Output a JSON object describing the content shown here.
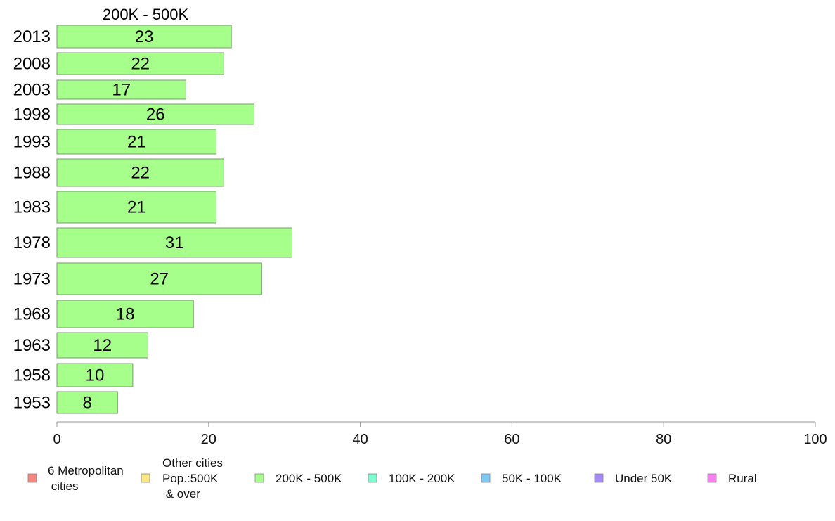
{
  "chart_data": {
    "type": "bar",
    "orientation": "horizontal",
    "title": "200K - 500K",
    "categories": [
      "2013",
      "2008",
      "2003",
      "1998",
      "1993",
      "1988",
      "1983",
      "1978",
      "1973",
      "1968",
      "1963",
      "1958",
      "1953"
    ],
    "series": [
      {
        "name": "200K - 500K",
        "values": [
          23,
          22,
          17,
          26,
          21,
          22,
          21,
          31,
          27,
          18,
          12,
          10,
          8
        ],
        "color": "#a6ff8a"
      }
    ],
    "xlim": [
      0,
      100
    ],
    "xticks": [
      0,
      20,
      40,
      60,
      80,
      100
    ],
    "grid": false,
    "legend_position": "bottom",
    "legend": [
      {
        "label": "6 Metropolitan\n cities",
        "color": "#f7877f"
      },
      {
        "label": "Other cities\nPop.:500K\n & over",
        "color": "#fbe77f"
      },
      {
        "label": "200K - 500K",
        "color": "#a6ff8a"
      },
      {
        "label": "100K - 200K",
        "color": "#7dfccf"
      },
      {
        "label": "50K - 100K",
        "color": "#7cc8f7"
      },
      {
        "label": "Under 50K",
        "color": "#a58af7"
      },
      {
        "label": "Rural",
        "color": "#f77ff0"
      }
    ]
  }
}
